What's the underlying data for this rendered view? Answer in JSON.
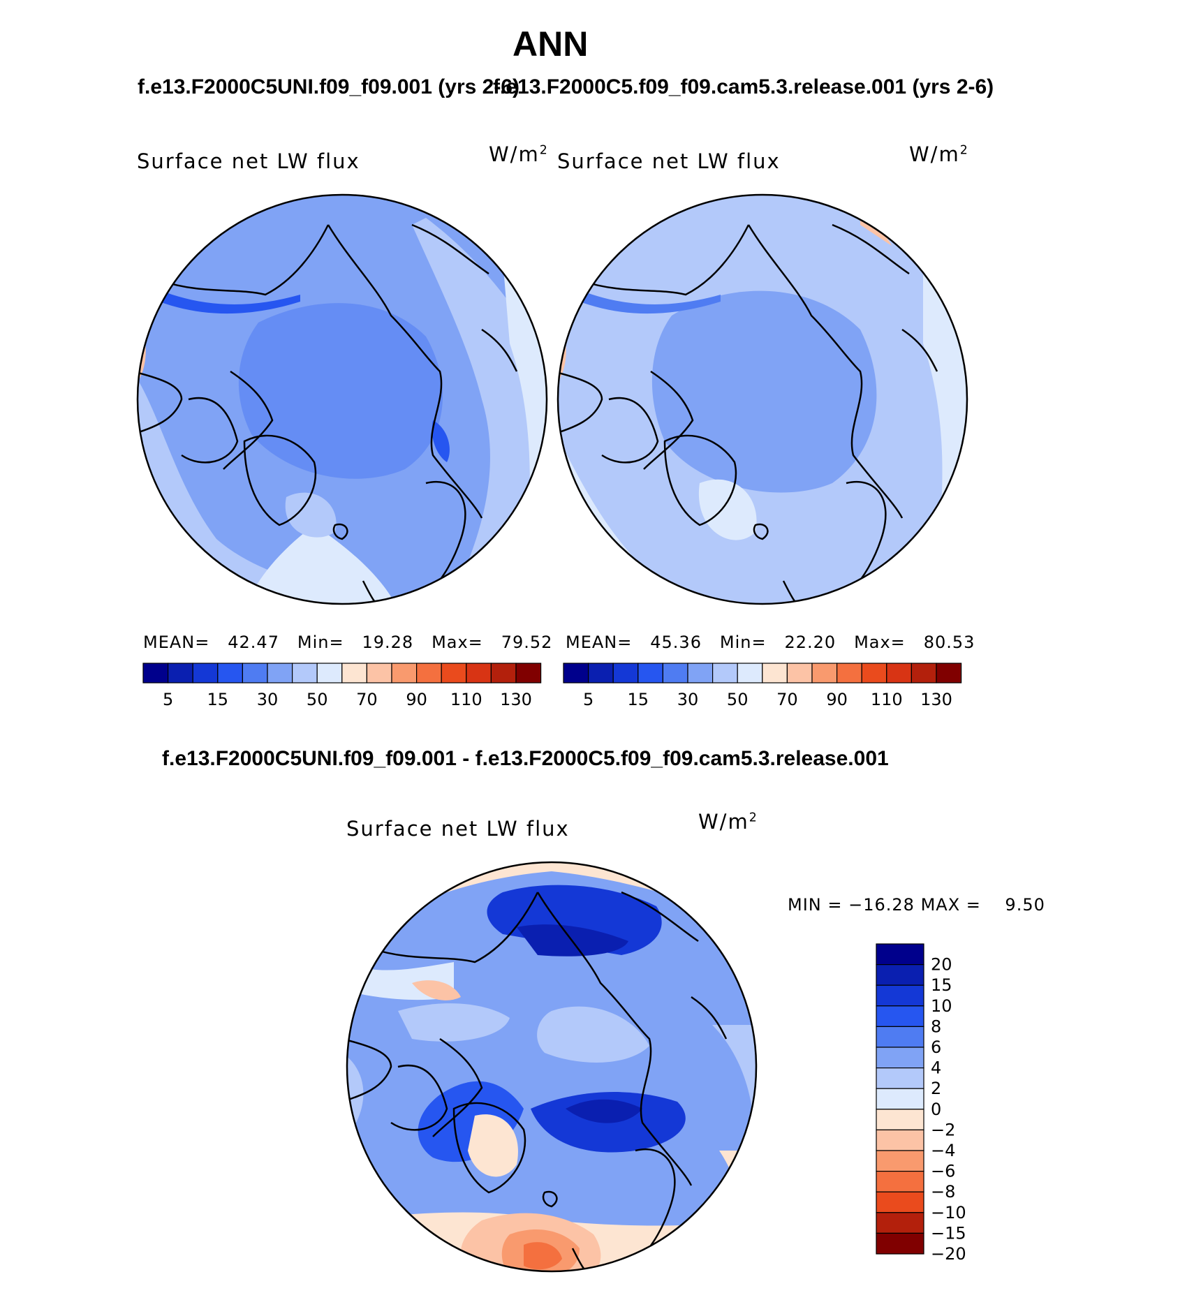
{
  "title": "ANN",
  "case_a": {
    "name": "f.e13.F2000C5UNI.f09_f09.001",
    "years": "(yrs 2-6)"
  },
  "case_b": {
    "name": "f.e13.F2000C5.f09_f09.cam5.3.release.001",
    "years": "(yrs 2-6)"
  },
  "diff_title": "f.e13.F2000C5UNI.f09_f09.001 - f.e13.F2000C5.f09_f09.cam5.3.release.001",
  "variable": "Surface net LW flux",
  "units": {
    "base": "W/m",
    "exp": "2"
  },
  "panels": [
    {
      "id": "case-a",
      "stats": {
        "mean_label": "MEAN=",
        "mean": "42.47",
        "min_label": "Min=",
        "min": "19.28",
        "max_label": "Max=",
        "max": "79.52"
      }
    },
    {
      "id": "case-b",
      "stats": {
        "mean_label": "MEAN=",
        "mean": "45.36",
        "min_label": "Min=",
        "min": "22.20",
        "max_label": "Max=",
        "max": "80.53"
      }
    }
  ],
  "abs_colorbar": {
    "colors": [
      "#00008c",
      "#0a1fb0",
      "#1438d6",
      "#2656f0",
      "#4f7cf2",
      "#80a3f5",
      "#b3c9fa",
      "#ddeafd",
      "#fde5d2",
      "#fcc3a6",
      "#f99a6e",
      "#f4703f",
      "#ea4b1d",
      "#d83414",
      "#b3200c",
      "#800000"
    ],
    "labels": [
      "5",
      "15",
      "30",
      "50",
      "70",
      "90",
      "110",
      "130"
    ]
  },
  "diff_stats": {
    "min_label": "MIN =",
    "min": "−16.28",
    "max_label": "MAX =",
    "max": "9.50"
  },
  "diff_colorbar": {
    "colors": [
      "#00008c",
      "#0a1fb0",
      "#1438d6",
      "#2656f0",
      "#4f7cf2",
      "#80a3f5",
      "#b3c9fa",
      "#ddeafd",
      "#fde5d2",
      "#fcc3a6",
      "#f99a6e",
      "#f4703f",
      "#ea4b1d",
      "#b3200c",
      "#800000"
    ],
    "labels": [
      "20",
      "15",
      "10",
      "8",
      "6",
      "4",
      "2",
      "0",
      "−2",
      "−4",
      "−6",
      "−8",
      "−10",
      "−15",
      "−20"
    ]
  },
  "chart_data": {
    "type": "heatmap",
    "title": "ANN",
    "variable": "Surface net LW flux",
    "units": "W/m2",
    "projection": "north polar stereographic",
    "panels": [
      {
        "name": "f.e13.F2000C5UNI.f09_f09.001 (yrs 2-6)",
        "mean": 42.47,
        "min": 19.28,
        "max": 79.52,
        "contour_levels": [
          5,
          10,
          15,
          20,
          30,
          40,
          50,
          60,
          70,
          80,
          90,
          100,
          110,
          120,
          130
        ]
      },
      {
        "name": "f.e13.F2000C5.f09_f09.cam5.3.release.001 (yrs 2-6)",
        "mean": 45.36,
        "min": 22.2,
        "max": 80.53,
        "contour_levels": [
          5,
          10,
          15,
          20,
          30,
          40,
          50,
          60,
          70,
          80,
          90,
          100,
          110,
          120,
          130
        ]
      },
      {
        "name": "difference",
        "min": -16.28,
        "max": 9.5,
        "contour_levels": [
          -20,
          -15,
          -10,
          -8,
          -6,
          -4,
          -2,
          0,
          2,
          4,
          6,
          8,
          10,
          15,
          20
        ]
      }
    ]
  }
}
